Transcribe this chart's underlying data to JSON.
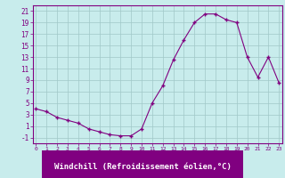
{
  "x": [
    0,
    1,
    2,
    3,
    4,
    5,
    6,
    7,
    8,
    9,
    10,
    11,
    12,
    13,
    14,
    15,
    16,
    17,
    18,
    19,
    20,
    21,
    22,
    23
  ],
  "y": [
    4.0,
    3.5,
    2.5,
    2.0,
    1.5,
    0.5,
    0.0,
    -0.5,
    -0.7,
    -0.7,
    0.5,
    5.0,
    8.0,
    12.5,
    16.0,
    19.0,
    20.5,
    20.5,
    19.5,
    19.0,
    13.0,
    9.5,
    13.0,
    8.5
  ],
  "line_color": "#800080",
  "marker": "+",
  "marker_size": 4,
  "bg_color": "#c8ecec",
  "grid_color": "#a0c8c8",
  "ytick_labels": [
    "-1",
    "1",
    "3",
    "5",
    "7",
    "9",
    "11",
    "13",
    "15",
    "17",
    "19",
    "21"
  ],
  "yticks": [
    -1,
    1,
    3,
    5,
    7,
    9,
    11,
    13,
    15,
    17,
    19,
    21
  ],
  "ylim": [
    -2,
    22
  ],
  "xlim": [
    -0.3,
    23.3
  ],
  "xtick_labels": [
    "0",
    "1",
    "2",
    "3",
    "4",
    "5",
    "6",
    "7",
    "8",
    "9",
    "10",
    "11",
    "12",
    "13",
    "14",
    "15",
    "16",
    "17",
    "18",
    "19",
    "20",
    "21",
    "22",
    "23"
  ],
  "xlabel": "Windchill (Refroidissement éolien,°C)"
}
